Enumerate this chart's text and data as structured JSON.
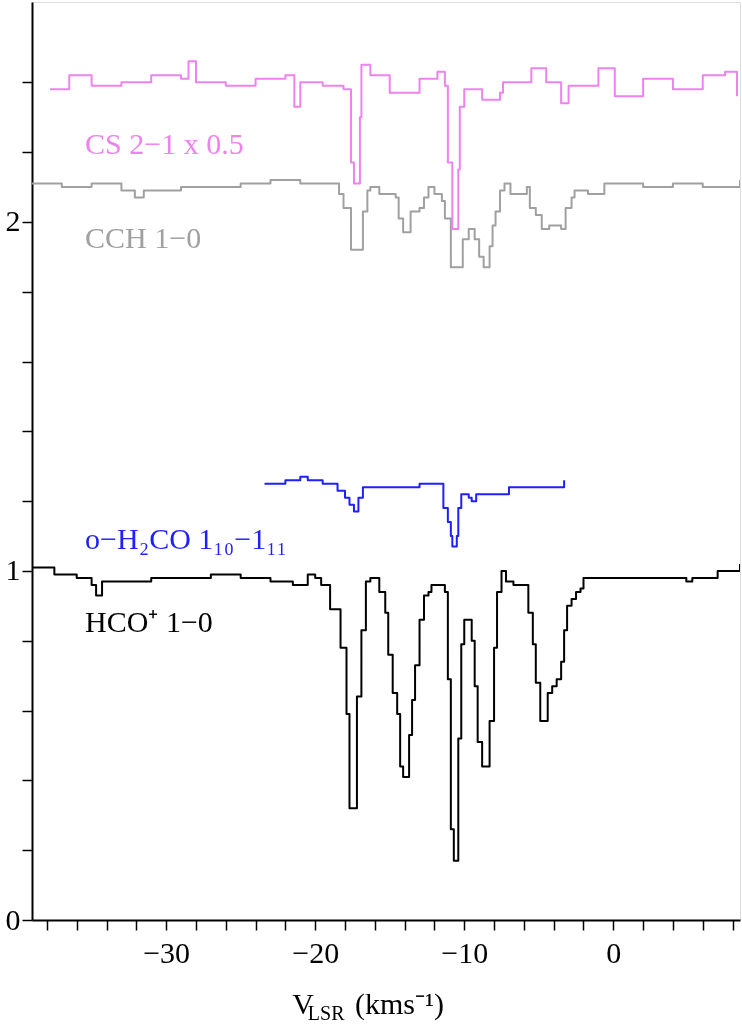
{
  "chart_data": {
    "type": "step",
    "xlabel": "V$_{LSR}$ (kms⁻¹)",
    "xlim": [
      -39,
      8.5
    ],
    "ylim": [
      0,
      2.63
    ],
    "xticks": [
      {
        "value": -38,
        "label": null
      },
      {
        "value": -36,
        "label": null
      },
      {
        "value": -34,
        "label": null
      },
      {
        "value": -32,
        "label": null
      },
      -30,
      {
        "value": -28,
        "label": null
      },
      {
        "value": -26,
        "label": null
      },
      {
        "value": -24,
        "label": null
      },
      {
        "value": -22,
        "label": null
      },
      -20,
      {
        "value": -18,
        "label": null
      },
      {
        "value": -16,
        "label": null
      },
      {
        "value": -14,
        "label": null
      },
      {
        "value": -12,
        "label": null
      },
      -10,
      {
        "value": -8,
        "label": null
      },
      {
        "value": -6,
        "label": null
      },
      {
        "value": -4,
        "label": null
      },
      {
        "value": -2,
        "label": null
      },
      0,
      {
        "value": 2,
        "label": null
      },
      {
        "value": 4,
        "label": null
      },
      {
        "value": 6,
        "label": null
      },
      {
        "value": 8,
        "label": null
      }
    ],
    "yticks": [
      0,
      {
        "value": 0.2,
        "label": null
      },
      {
        "value": 0.4,
        "label": null
      },
      {
        "value": 0.6,
        "label": null
      },
      {
        "value": 0.8,
        "label": null
      },
      1,
      {
        "value": 1.2,
        "label": null
      },
      {
        "value": 1.4,
        "label": null
      },
      {
        "value": 1.6,
        "label": null
      },
      {
        "value": 1.8,
        "label": null
      },
      2,
      {
        "value": 2.2,
        "label": null
      },
      {
        "value": 2.4,
        "label": null
      }
    ],
    "grid": false,
    "line_style": "solid",
    "series": [
      {
        "name": "HCO⁺ 1−0",
        "color": "#000000",
        "x": [
          -39,
          -37.5,
          -36,
          -35,
          -34.7,
          -34.3,
          -33,
          -31,
          -29,
          -27,
          -25,
          -23,
          -21.5,
          -20.5,
          -20.0,
          -19.6,
          -19.0,
          -18.3,
          -17.9,
          -17.7,
          -17.2,
          -16.9,
          -16.6,
          -16.3,
          -15.7,
          -15.3,
          -15.1,
          -14.8,
          -14.5,
          -14.3,
          -14.1,
          -13.7,
          -13.5,
          -13.3,
          -13.0,
          -12.7,
          -12.4,
          -12.2,
          -11.5,
          -11.3,
          -11.1,
          -10.9,
          -10.7,
          -10.4,
          -10.2,
          -10.0,
          -9.8,
          -9.5,
          -9.3,
          -9.1,
          -8.8,
          -8.3,
          -8.0,
          -7.8,
          -7.5,
          -7.2,
          -6.7,
          -5.9,
          -5.7,
          -5.4,
          -5.2,
          -4.9,
          -4.4,
          -4.1,
          -3.8,
          -3.5,
          -3.3,
          -3.1,
          -2.8,
          -2.5,
          -2.2,
          -2.0,
          0,
          2,
          4.9,
          5.3,
          7,
          8.5
        ],
        "values": [
          1.01,
          0.99,
          0.98,
          0.96,
          0.93,
          0.97,
          0.97,
          0.98,
          0.98,
          0.99,
          0.98,
          0.97,
          0.96,
          0.99,
          0.98,
          0.96,
          0.89,
          0.78,
          0.59,
          0.32,
          0.64,
          0.83,
          0.97,
          0.98,
          0.94,
          0.88,
          0.76,
          0.65,
          0.59,
          0.44,
          0.41,
          0.53,
          0.63,
          0.73,
          0.86,
          0.93,
          0.94,
          0.96,
          0.96,
          0.94,
          0.69,
          0.26,
          0.17,
          0.52,
          0.79,
          0.86,
          0.86,
          0.8,
          0.67,
          0.51,
          0.44,
          0.57,
          0.78,
          0.94,
          1.0,
          0.97,
          0.96,
          0.96,
          0.88,
          0.79,
          0.68,
          0.57,
          0.65,
          0.67,
          0.69,
          0.74,
          0.83,
          0.9,
          0.92,
          0.94,
          0.95,
          0.98,
          0.98,
          0.98,
          0.97,
          0.98,
          1.0,
          1.02
        ]
      },
      {
        "name": "o−H₂CO 1₁₀−1₁₁",
        "color": "#1f1fff",
        "x": [
          -23.4,
          -22,
          -21,
          -20.5,
          -19.5,
          -18.5,
          -18.0,
          -17.7,
          -17.4,
          -17.1,
          -16.8,
          -15,
          -13,
          -11.7,
          -11.4,
          -11.1,
          -10.9,
          -10.8,
          -10.5,
          -10.4,
          -10.2,
          -9.7,
          -9.5,
          -9.2,
          -7,
          -5,
          -3.3
        ],
        "values": [
          1.25,
          1.26,
          1.27,
          1.26,
          1.25,
          1.23,
          1.21,
          1.19,
          1.17,
          1.21,
          1.24,
          1.24,
          1.25,
          1.25,
          1.18,
          1.14,
          1.1,
          1.07,
          1.1,
          1.18,
          1.22,
          1.21,
          1.2,
          1.22,
          1.24,
          1.24,
          1.26
        ]
      },
      {
        "name": "CCH 1−0",
        "color": "#a0a0a0",
        "x": [
          -39,
          -37,
          -35,
          -33,
          -32.1,
          -31.5,
          -29,
          -27,
          -25,
          -23,
          -21,
          -19.5,
          -18.4,
          -18.1,
          -17.6,
          -16.8,
          -16.5,
          -16.3,
          -15.7,
          -14.6,
          -14.4,
          -14.1,
          -13.6,
          -13.0,
          -12.7,
          -12.4,
          -12.0,
          -11.5,
          -11.3,
          -10.9,
          -10.1,
          -9.7,
          -9.3,
          -9.0,
          -8.7,
          -8.3,
          -8.1,
          -7.9,
          -7.6,
          -7.3,
          -6.9,
          -6.3,
          -5.8,
          -5.6,
          -5.2,
          -4.8,
          -4.3,
          -3.5,
          -3.2,
          -2.8,
          -2.6,
          -1.7,
          -0.6,
          2,
          4,
          6,
          8.5
        ],
        "values": [
          2.11,
          2.1,
          2.11,
          2.09,
          2.07,
          2.09,
          2.1,
          2.1,
          2.11,
          2.12,
          2.11,
          2.11,
          2.08,
          2.04,
          1.92,
          2.03,
          2.09,
          2.1,
          2.08,
          2.07,
          2.01,
          1.97,
          2.03,
          2.04,
          2.07,
          2.1,
          2.08,
          2.06,
          2.01,
          1.87,
          1.95,
          1.98,
          1.95,
          1.9,
          1.87,
          1.93,
          1.99,
          2.03,
          2.09,
          2.11,
          2.08,
          2.08,
          2.1,
          2.04,
          2.02,
          1.98,
          1.99,
          1.98,
          2.04,
          2.07,
          2.09,
          2.08,
          2.11,
          2.1,
          2.11,
          2.1,
          2.12
        ]
      },
      {
        "name": "CS 2−1 x 0.5",
        "color": "#ee82ee",
        "x": [
          -37.8,
          -36.5,
          -35,
          -33,
          -31,
          -29,
          -28.5,
          -28,
          -26,
          -24,
          -22,
          -21.4,
          -21.0,
          -19.5,
          -18.1,
          -17.6,
          -17.4,
          -17.0,
          -16.9,
          -16.3,
          -15,
          -13,
          -11.8,
          -11.3,
          -11.1,
          -10.8,
          -10.4,
          -10.3,
          -10.0,
          -8.8,
          -7.6,
          -7.4,
          -5.5,
          -4.5,
          -3.5,
          -3.0,
          -1.0,
          0.1,
          2.0,
          4,
          6,
          7.5,
          8.3
        ],
        "values": [
          2.38,
          2.42,
          2.39,
          2.4,
          2.42,
          2.41,
          2.46,
          2.4,
          2.39,
          2.41,
          2.42,
          2.33,
          2.4,
          2.39,
          2.38,
          2.17,
          2.11,
          2.3,
          2.45,
          2.42,
          2.37,
          2.41,
          2.43,
          2.39,
          2.17,
          1.98,
          2.15,
          2.33,
          2.38,
          2.35,
          2.37,
          2.4,
          2.44,
          2.4,
          2.34,
          2.39,
          2.44,
          2.36,
          2.41,
          2.38,
          2.42,
          2.43,
          2.36
        ]
      }
    ]
  }
}
